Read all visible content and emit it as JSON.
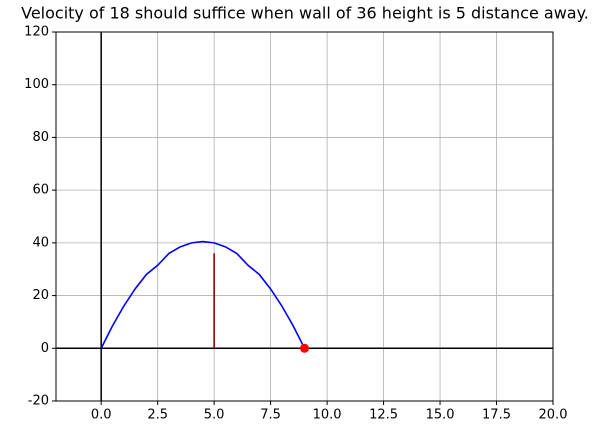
{
  "chart_data": {
    "type": "line",
    "title": "Velocity of 18 should suffice when wall of 36 height is 5 distance away.",
    "xlim": [
      -2,
      20
    ],
    "ylim": [
      -20,
      120
    ],
    "xticks": [
      {
        "value": 0,
        "label": "0.0"
      },
      2.5,
      {
        "value": 5,
        "label": "5.0"
      },
      7.5,
      {
        "value": 10,
        "label": "10.0"
      },
      12.5,
      {
        "value": 15,
        "label": "15.0"
      },
      17.5,
      {
        "value": 20,
        "label": "20.0"
      }
    ],
    "yticks": [
      -20,
      0,
      20,
      40,
      60,
      80,
      100,
      120
    ],
    "grid": true,
    "series": [
      {
        "color": "#0000ff",
        "x": [
          0,
          0.5,
          1,
          1.5,
          2,
          2.5,
          3,
          3.5,
          4,
          4.5,
          5,
          5.5,
          6,
          6.5,
          7,
          7.5,
          8,
          8.5,
          9
        ],
        "values": [
          0,
          8.5,
          16,
          22.5,
          28,
          31.5,
          36,
          38.5,
          40,
          40.5,
          40,
          38.5,
          36,
          31.5,
          28,
          22.5,
          16,
          8.5,
          0
        ]
      },
      {
        "color": "#8b0000",
        "x": [
          5,
          5
        ],
        "values": [
          0,
          36
        ]
      },
      {
        "color": "#ff0000",
        "marker": true,
        "x": [
          9
        ],
        "values": [
          0
        ]
      }
    ]
  }
}
